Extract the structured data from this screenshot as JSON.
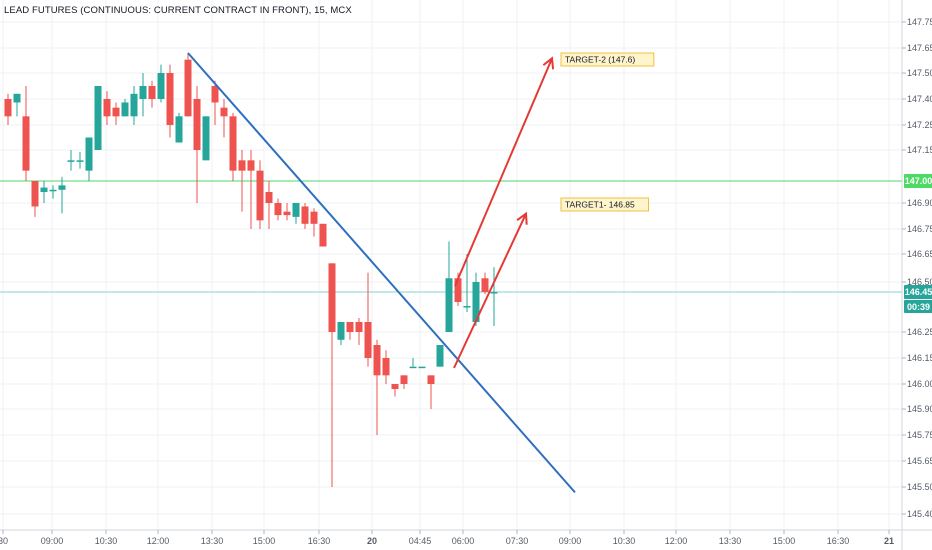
{
  "header": {
    "title": "LEAD FUTURES (CONTINUOUS: CURRENT CONTRACT IN FRONT), 15, MCX"
  },
  "colors": {
    "up": "#26a69a",
    "down": "#ef5350",
    "grid": "#eef0f3",
    "trendline": "#2e6fc0",
    "arrow": "#e53935",
    "level_line": "#4cd964",
    "price_line": "#86d3d6",
    "text": "#131722",
    "axis_text": "#555b66"
  },
  "chart_data": {
    "type": "candlestick",
    "title": "LEAD FUTURES (CONTINUOUS: CURRENT CONTRACT IN FRONT), 15, MCX",
    "y_ticks": [
      "147.75",
      "147.65",
      "147.50",
      "147.40",
      "147.25",
      "147.15",
      "146.90",
      "146.75",
      "146.65",
      "146.50",
      "146.25",
      "146.15",
      "146.00",
      "145.90",
      "145.75",
      "145.65",
      "145.50",
      "145.40"
    ],
    "x_ticks": [
      "30",
      "09:00",
      "10:30",
      "12:00",
      "13:30",
      "15:00",
      "16:30",
      "20",
      "04:45",
      "06:00",
      "07:30",
      "09:00",
      "10:30",
      "12:00",
      "13:30",
      "15:00",
      "16:30",
      "21"
    ],
    "ylim": [
      145.35,
      147.85
    ],
    "candles": [
      {
        "o": 147.4,
        "h": 147.42,
        "l": 147.25,
        "c": 147.3
      },
      {
        "o": 147.38,
        "h": 147.42,
        "l": 147.3,
        "c": 147.42
      },
      {
        "o": 147.3,
        "h": 147.45,
        "l": 147.0,
        "c": 147.05
      },
      {
        "o": 147.0,
        "h": 147.0,
        "l": 146.82,
        "c": 146.88
      },
      {
        "o": 146.95,
        "h": 147.0,
        "l": 146.9,
        "c": 146.97
      },
      {
        "o": 146.96,
        "h": 146.98,
        "l": 146.92,
        "c": 146.96
      },
      {
        "o": 146.96,
        "h": 147.02,
        "l": 146.84,
        "c": 146.98
      },
      {
        "o": 147.1,
        "h": 147.15,
        "l": 147.05,
        "c": 147.1
      },
      {
        "o": 147.1,
        "h": 147.14,
        "l": 147.06,
        "c": 147.1
      },
      {
        "o": 147.05,
        "h": 147.2,
        "l": 147.0,
        "c": 147.2
      },
      {
        "o": 147.15,
        "h": 147.45,
        "l": 147.15,
        "c": 147.45
      },
      {
        "o": 147.4,
        "h": 147.43,
        "l": 147.25,
        "c": 147.3
      },
      {
        "o": 147.35,
        "h": 147.38,
        "l": 147.25,
        "c": 147.3
      },
      {
        "o": 147.3,
        "h": 147.4,
        "l": 147.3,
        "c": 147.38
      },
      {
        "o": 147.3,
        "h": 147.45,
        "l": 147.25,
        "c": 147.42
      },
      {
        "o": 147.4,
        "h": 147.5,
        "l": 147.3,
        "c": 147.45
      },
      {
        "o": 147.45,
        "h": 147.47,
        "l": 147.35,
        "c": 147.4
      },
      {
        "o": 147.4,
        "h": 147.55,
        "l": 147.38,
        "c": 147.5
      },
      {
        "o": 147.5,
        "h": 147.55,
        "l": 147.2,
        "c": 147.25
      },
      {
        "o": 147.18,
        "h": 147.32,
        "l": 147.18,
        "c": 147.3
      },
      {
        "o": 147.58,
        "h": 147.62,
        "l": 147.3,
        "c": 147.3
      },
      {
        "o": 147.4,
        "h": 147.45,
        "l": 146.9,
        "c": 147.15
      },
      {
        "o": 147.1,
        "h": 147.3,
        "l": 147.1,
        "c": 147.3
      },
      {
        "o": 147.45,
        "h": 147.47,
        "l": 147.25,
        "c": 147.38
      },
      {
        "o": 147.35,
        "h": 147.4,
        "l": 147.2,
        "c": 147.3
      },
      {
        "o": 147.3,
        "h": 147.32,
        "l": 147.0,
        "c": 147.05
      },
      {
        "o": 147.1,
        "h": 147.15,
        "l": 146.85,
        "c": 147.05
      },
      {
        "o": 147.1,
        "h": 147.15,
        "l": 146.75,
        "c": 147.05
      },
      {
        "o": 147.05,
        "h": 147.1,
        "l": 146.75,
        "c": 146.8
      },
      {
        "o": 146.95,
        "h": 147.0,
        "l": 146.75,
        "c": 146.9
      },
      {
        "o": 146.9,
        "h": 146.92,
        "l": 146.8,
        "c": 146.83
      },
      {
        "o": 146.85,
        "h": 146.9,
        "l": 146.8,
        "c": 146.83
      },
      {
        "o": 146.82,
        "h": 146.9,
        "l": 146.78,
        "c": 146.9
      },
      {
        "o": 146.88,
        "h": 146.9,
        "l": 146.75,
        "c": 146.78
      },
      {
        "o": 146.85,
        "h": 146.87,
        "l": 146.72,
        "c": 146.78
      },
      {
        "o": 146.78,
        "h": 146.78,
        "l": 146.68,
        "c": 146.68
      },
      {
        "o": 146.6,
        "h": 146.6,
        "l": 145.5,
        "c": 146.25
      },
      {
        "o": 146.22,
        "h": 146.3,
        "l": 146.2,
        "c": 146.3
      },
      {
        "o": 146.3,
        "h": 146.3,
        "l": 146.22,
        "c": 146.25
      },
      {
        "o": 146.3,
        "h": 146.32,
        "l": 146.2,
        "c": 146.25
      },
      {
        "o": 146.3,
        "h": 146.55,
        "l": 146.1,
        "c": 146.15
      },
      {
        "o": 146.2,
        "h": 146.22,
        "l": 145.75,
        "c": 146.05
      },
      {
        "o": 146.15,
        "h": 146.18,
        "l": 146.0,
        "c": 146.05
      },
      {
        "o": 146.0,
        "h": 146.0,
        "l": 145.95,
        "c": 145.98
      },
      {
        "o": 146.05,
        "h": 146.05,
        "l": 145.98,
        "c": 146.0
      },
      {
        "o": 146.1,
        "h": 146.15,
        "l": 146.1,
        "c": 146.1
      },
      {
        "o": 146.1,
        "h": 146.1,
        "l": 146.1,
        "c": 146.1
      },
      {
        "o": 146.05,
        "h": 146.05,
        "l": 145.9,
        "c": 146.0
      },
      {
        "o": 146.1,
        "h": 146.2,
        "l": 146.1,
        "c": 146.2
      },
      {
        "o": 146.25,
        "h": 146.7,
        "l": 146.25,
        "c": 146.52
      },
      {
        "o": 146.52,
        "h": 146.55,
        "l": 146.38,
        "c": 146.4
      },
      {
        "o": 146.38,
        "h": 146.65,
        "l": 146.35,
        "c": 146.38
      },
      {
        "o": 146.3,
        "h": 146.55,
        "l": 146.28,
        "c": 146.5
      },
      {
        "o": 146.52,
        "h": 146.55,
        "l": 146.44,
        "c": 146.45
      },
      {
        "o": 146.45,
        "h": 146.58,
        "l": 146.28,
        "c": 146.45
      }
    ],
    "horizontal_lines": [
      {
        "price": 147.0,
        "label": "147.00",
        "role": "level"
      },
      {
        "price": 146.45,
        "label": "146.45",
        "role": "last"
      }
    ],
    "countdown": "00:39",
    "annotations": [
      {
        "text": "TARGET-2 (147.6)"
      },
      {
        "text": "TARGET1- 146.85"
      }
    ]
  }
}
